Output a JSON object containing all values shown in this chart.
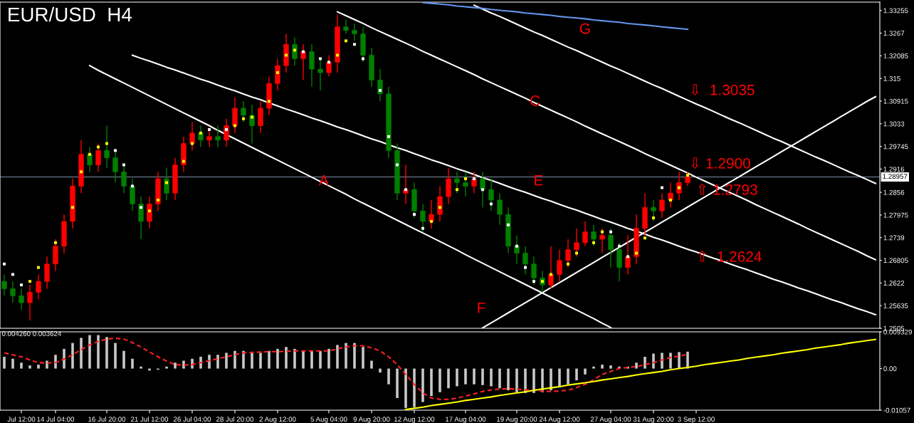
{
  "chart_data": [
    {
      "type": "candlestick",
      "title": "EUR/USD  H4",
      "tick_labels": "y",
      "grid": false,
      "legend": false,
      "categories": [
        null,
        null,
        null,
        null,
        null,
        null,
        null,
        null,
        null,
        null,
        null,
        null,
        null,
        null,
        null,
        null,
        null,
        null,
        null,
        null,
        null,
        null,
        null,
        null,
        null,
        null,
        null,
        null,
        null,
        null,
        null,
        null,
        null,
        null,
        null,
        null,
        null,
        null,
        null,
        null,
        null,
        null,
        null,
        null,
        null,
        null,
        null,
        null,
        null,
        null,
        null,
        null,
        null,
        null,
        null,
        null,
        null,
        null,
        null,
        null,
        null,
        null,
        null,
        null,
        null,
        null,
        null,
        null,
        null,
        null,
        null,
        null,
        null,
        null,
        null,
        null,
        null,
        null,
        null,
        null,
        null,
        null,
        null,
        null,
        null,
        null,
        null,
        null,
        null,
        null,
        null,
        null,
        null,
        null,
        null,
        null,
        null,
        null,
        null,
        null,
        null,
        null,
        null
      ],
      "ylim": [
        1.2505,
        1.3347
      ],
      "yticks": [
        1.33255,
        1.3267,
        1.32085,
        1.315,
        1.30915,
        1.3033,
        1.29745,
        1.2916,
        1.2856,
        1.27975,
        1.2739,
        1.26805,
        1.2622,
        1.25635,
        1.2505
      ],
      "ohlc": [
        [
          1.2626,
          1.2644,
          1.2589,
          1.2607
        ],
        [
          1.2607,
          1.2626,
          1.2571,
          1.2589
        ],
        [
          1.2589,
          1.2607,
          1.2553,
          1.2571
        ],
        [
          1.2571,
          1.2617,
          1.2525,
          1.2598
        ],
        [
          1.2598,
          1.2644,
          1.258,
          1.2626
        ],
        [
          1.2626,
          1.269,
          1.2607,
          1.2671
        ],
        [
          1.2671,
          1.2735,
          1.2653,
          1.2717
        ],
        [
          1.2717,
          1.2799,
          1.2699,
          1.2781
        ],
        [
          1.2781,
          1.2891,
          1.2763,
          1.2872
        ],
        [
          1.2872,
          1.2991,
          1.2854,
          1.2954
        ],
        [
          1.2954,
          1.2973,
          1.2909,
          1.2927
        ],
        [
          1.2927,
          1.2982,
          1.2909,
          1.2964
        ],
        [
          1.2964,
          1.3028,
          1.2918,
          1.2945
        ],
        [
          1.2945,
          1.2964,
          1.2881,
          1.2909
        ],
        [
          1.2909,
          1.2927,
          1.2854,
          1.2872
        ],
        [
          1.2872,
          1.2891,
          1.2808,
          1.2826
        ],
        [
          1.2826,
          1.2845,
          1.2735,
          1.2781
        ],
        [
          1.2781,
          1.2845,
          1.2763,
          1.2826
        ],
        [
          1.2826,
          1.2909,
          1.2808,
          1.2891
        ],
        [
          1.2891,
          1.2918,
          1.2836,
          1.2854
        ],
        [
          1.2854,
          1.2945,
          1.2836,
          1.2927
        ],
        [
          1.2927,
          1.3,
          1.2909,
          1.2982
        ],
        [
          1.2982,
          1.3037,
          1.2964,
          1.3009
        ],
        [
          1.3009,
          1.3028,
          1.2973,
          1.2991
        ],
        [
          1.2991,
          1.3018,
          1.2973,
          1.3
        ],
        [
          1.3,
          1.3028,
          1.2973,
          1.2991
        ],
        [
          1.2991,
          1.3046,
          1.2973,
          1.3028
        ],
        [
          1.3028,
          1.3101,
          1.3009,
          1.3073
        ],
        [
          1.3073,
          1.3091,
          1.3037,
          1.3055
        ],
        [
          1.3055,
          1.3082,
          1.2982,
          1.3028
        ],
        [
          1.3028,
          1.3091,
          1.3009,
          1.3073
        ],
        [
          1.3073,
          1.3155,
          1.3055,
          1.3137
        ],
        [
          1.3137,
          1.3201,
          1.3119,
          1.3183
        ],
        [
          1.3183,
          1.3265,
          1.3165,
          1.3238
        ],
        [
          1.3238,
          1.3256,
          1.3183,
          1.3201
        ],
        [
          1.3201,
          1.3238,
          1.3146,
          1.3219
        ],
        [
          1.3219,
          1.3238,
          1.3128,
          1.3174
        ],
        [
          1.3174,
          1.3201,
          1.3119,
          1.3165
        ],
        [
          1.3165,
          1.321,
          1.3155,
          1.3192
        ],
        [
          1.3192,
          1.3315,
          1.3165,
          1.3283
        ],
        [
          1.3283,
          1.3302,
          1.3265,
          1.3274
        ],
        [
          1.3274,
          1.3292,
          1.3247,
          1.3265
        ],
        [
          1.3265,
          1.3283,
          1.3192,
          1.321
        ],
        [
          1.321,
          1.3229,
          1.3128,
          1.3146
        ],
        [
          1.3146,
          1.3174,
          1.3091,
          1.311
        ],
        [
          1.311,
          1.3128,
          1.2945,
          1.2964
        ],
        [
          1.2964,
          1.2982,
          1.2836,
          1.2854
        ],
        [
          1.2854,
          1.2927,
          1.2826,
          1.2863
        ],
        [
          1.2863,
          1.2881,
          1.279,
          1.2808
        ],
        [
          1.2808,
          1.2826,
          1.2754,
          1.2781
        ],
        [
          1.2781,
          1.2836,
          1.2763,
          1.2799
        ],
        [
          1.2799,
          1.2872,
          1.2781,
          1.2845
        ],
        [
          1.2845,
          1.2918,
          1.2826,
          1.2891
        ],
        [
          1.2891,
          1.2909,
          1.2854,
          1.2881
        ],
        [
          1.2881,
          1.2909,
          1.2845,
          1.2872
        ],
        [
          1.2872,
          1.2909,
          1.2854,
          1.2891
        ],
        [
          1.2891,
          1.2909,
          1.2817,
          1.2863
        ],
        [
          1.2863,
          1.2891,
          1.2808,
          1.2836
        ],
        [
          1.2836,
          1.2854,
          1.2772,
          1.2799
        ],
        [
          1.2799,
          1.2817,
          1.2699,
          1.2717
        ],
        [
          1.2717,
          1.2745,
          1.2671,
          1.2699
        ],
        [
          1.2699,
          1.2717,
          1.2644,
          1.2671
        ],
        [
          1.2671,
          1.269,
          1.2617,
          1.2635
        ],
        [
          1.2635,
          1.2653,
          1.2598,
          1.2617
        ],
        [
          1.2617,
          1.2717,
          1.2607,
          1.2644
        ],
        [
          1.2644,
          1.2708,
          1.2626,
          1.268
        ],
        [
          1.268,
          1.2735,
          1.2662,
          1.2708
        ],
        [
          1.2708,
          1.2763,
          1.269,
          1.2726
        ],
        [
          1.2726,
          1.2781,
          1.2717,
          1.2754
        ],
        [
          1.2754,
          1.2772,
          1.2717,
          1.2735
        ],
        [
          1.2735,
          1.2763,
          1.2699,
          1.2745
        ],
        [
          1.2745,
          1.2763,
          1.2662,
          1.2708
        ],
        [
          1.2708,
          1.2726,
          1.2626,
          1.2662
        ],
        [
          1.2662,
          1.2745,
          1.2644,
          1.269
        ],
        [
          1.269,
          1.2799,
          1.2671,
          1.2763
        ],
        [
          1.2763,
          1.2854,
          1.2745,
          1.2817
        ],
        [
          1.2817,
          1.2836,
          1.2781,
          1.2808
        ],
        [
          1.2808,
          1.2854,
          1.279,
          1.2836
        ],
        [
          1.2836,
          1.2881,
          1.2817,
          1.2854
        ],
        [
          1.2854,
          1.2909,
          1.2836,
          1.2881
        ],
        [
          1.2881,
          1.2909,
          1.2872,
          1.2896
        ],
        null,
        null,
        null,
        null,
        null,
        null,
        null,
        null,
        null,
        null,
        null,
        null,
        null,
        null,
        null,
        null,
        null,
        null,
        null,
        null,
        null,
        null
      ],
      "colors": [
        "#008000",
        "#008000",
        "#008000",
        "#ff0000",
        "#ff0000",
        "#ff0000",
        "#ff0000",
        "#ff0000",
        "#ff0000",
        "#ff0000",
        "#008000",
        "#ff0000",
        "#008000",
        "#008000",
        "#008000",
        "#008000",
        "#008000",
        "#ff0000",
        "#ff0000",
        "#008000",
        "#ff0000",
        "#ff0000",
        "#ff0000",
        "#008000",
        "#ff0000",
        "#008000",
        "#ff0000",
        "#ff0000",
        "#008000",
        "#008000",
        "#ff0000",
        "#ff0000",
        "#ff0000",
        "#ff0000",
        "#008000",
        "#ff0000",
        "#008000",
        "#008000",
        "#ff0000",
        "#ff0000",
        "#008000",
        "#008000",
        "#008000",
        "#008000",
        "#008000",
        "#008000",
        "#008000",
        "#ff0000",
        "#008000",
        "#008000",
        "#ff0000",
        "#ff0000",
        "#ff0000",
        "#008000",
        "#008000",
        "#ff0000",
        "#008000",
        "#008000",
        "#008000",
        "#008000",
        "#008000",
        "#008000",
        "#008000",
        "#008000",
        "#ff0000",
        "#ff0000",
        "#ff0000",
        "#ff0000",
        "#ff0000",
        "#008000",
        "#ff0000",
        "#008000",
        "#008000",
        "#ff0000",
        "#ff0000",
        "#ff0000",
        "#008000",
        "#ff0000",
        "#ff0000",
        "#ff0000",
        "#ff0000",
        null,
        null,
        null,
        null,
        null,
        null,
        null,
        null,
        null,
        null,
        null,
        null,
        null,
        null,
        null,
        null,
        null,
        null,
        null,
        null,
        null,
        null
      ],
      "series": [
        {
          "type": "line",
          "color": "#ffffff",
          "values": [
            null,
            null,
            null,
            null,
            null,
            null,
            null,
            null,
            null,
            null,
            null,
            null,
            null,
            null,
            null,
            null,
            null,
            null,
            null,
            null,
            null,
            null,
            null,
            null,
            null,
            null,
            null,
            null,
            null,
            null,
            null,
            null,
            null,
            null,
            null,
            null,
            null,
            null,
            null,
            null,
            null,
            null,
            null,
            null,
            null,
            null,
            null,
            null,
            null,
            null,
            null,
            null,
            null,
            null,
            null,
            1.3339,
            1.3329,
            1.3319,
            1.331,
            1.33,
            1.329,
            1.328,
            1.327,
            1.3261,
            1.3251,
            1.3241,
            1.3231,
            1.3222,
            1.3212,
            1.3202,
            1.3192,
            1.3182,
            1.3173,
            1.3163,
            1.3153,
            1.3143,
            1.3133,
            1.3124,
            1.3114,
            1.3104,
            1.3094,
            1.3084,
            1.3075,
            1.3065,
            1.3055,
            1.3045,
            1.3036,
            1.3026,
            1.3016,
            1.3006,
            1.2996,
            1.2987,
            1.2977,
            1.2967,
            1.2957,
            1.2947,
            1.2938,
            1.2928,
            1.2918,
            1.2908,
            1.2899,
            1.2889,
            1.2879
          ]
        },
        {
          "type": "line",
          "color": "#ffffff",
          "values": [
            null,
            null,
            null,
            null,
            null,
            null,
            null,
            null,
            null,
            null,
            null,
            null,
            null,
            null,
            null,
            null,
            null,
            null,
            null,
            null,
            null,
            null,
            null,
            null,
            null,
            null,
            null,
            null,
            null,
            null,
            null,
            null,
            null,
            null,
            null,
            null,
            null,
            null,
            null,
            1.3322,
            1.3312,
            1.3302,
            1.3292,
            1.3281,
            1.3271,
            1.3261,
            1.3251,
            1.3241,
            1.3231,
            1.322,
            1.321,
            1.32,
            1.319,
            1.318,
            1.317,
            1.316,
            1.3149,
            1.3139,
            1.3129,
            1.3119,
            1.3109,
            1.3099,
            1.3088,
            1.3078,
            1.3068,
            1.3058,
            1.3048,
            1.3038,
            1.3027,
            1.3017,
            1.3007,
            1.2997,
            1.2987,
            1.2977,
            1.2967,
            1.2956,
            1.2946,
            1.2936,
            1.2926,
            1.2916,
            1.2906,
            1.2895,
            1.2885,
            1.2875,
            1.2865,
            1.2855,
            1.2845,
            1.2835,
            1.2824,
            1.2814,
            1.2804,
            1.2794,
            1.2784,
            1.2774,
            1.2763,
            1.2753,
            1.2743,
            1.2733,
            1.2723,
            1.2713,
            1.2703,
            1.2692,
            1.2682
          ]
        },
        {
          "type": "line",
          "color": "#ffffff",
          "values": [
            null,
            null,
            null,
            null,
            null,
            null,
            null,
            null,
            null,
            null,
            null,
            null,
            null,
            null,
            null,
            1.321,
            1.3202,
            1.3195,
            1.3187,
            1.3179,
            1.3172,
            1.3164,
            1.3156,
            1.3148,
            1.3141,
            1.3133,
            1.3125,
            1.3118,
            1.311,
            1.3102,
            1.3095,
            1.3087,
            1.3079,
            1.3071,
            1.3064,
            1.3056,
            1.3048,
            1.3041,
            1.3033,
            1.3025,
            1.3018,
            1.301,
            1.3002,
            1.2994,
            1.2987,
            1.2979,
            1.2971,
            1.2964,
            1.2956,
            1.2948,
            1.294,
            1.2933,
            1.2925,
            1.2917,
            1.291,
            1.2902,
            1.2894,
            1.2887,
            1.2879,
            1.2871,
            1.2863,
            1.2856,
            1.2848,
            1.284,
            1.2833,
            1.2825,
            1.2817,
            1.281,
            1.2802,
            1.2794,
            1.2786,
            1.2779,
            1.2771,
            1.2763,
            1.2756,
            1.2748,
            1.274,
            1.2733,
            1.2725,
            1.2717,
            1.2709,
            1.2702,
            1.2694,
            1.2686,
            1.2679,
            1.2671,
            1.2663,
            1.2656,
            1.2648,
            1.264,
            1.2632,
            1.2625,
            1.2617,
            1.2609,
            1.2602,
            1.2594,
            1.2586,
            1.2578,
            1.2571,
            1.2563,
            1.2555,
            1.2548,
            1.254
          ]
        },
        {
          "type": "line",
          "color": "#ffffff",
          "values": [
            null,
            null,
            null,
            null,
            null,
            null,
            null,
            null,
            null,
            null,
            1.3183,
            1.3171,
            1.316,
            1.3149,
            1.3138,
            1.3127,
            1.3116,
            1.3105,
            1.3094,
            1.3083,
            1.3072,
            1.3061,
            1.305,
            1.3039,
            1.3028,
            1.3016,
            1.3005,
            1.2994,
            1.2983,
            1.2972,
            1.2961,
            1.295,
            1.2939,
            1.2928,
            1.2917,
            1.2906,
            1.2895,
            1.2884,
            1.2873,
            1.2862,
            1.2851,
            1.2839,
            1.2828,
            1.2817,
            1.2806,
            1.2795,
            1.2784,
            1.2773,
            1.2762,
            1.2751,
            1.274,
            1.2729,
            1.2718,
            1.2707,
            1.2695,
            1.2684,
            1.2673,
            1.2662,
            1.2651,
            1.264,
            1.2629,
            1.2618,
            1.2607,
            1.2596,
            1.2585,
            1.2574,
            1.2563,
            1.2552,
            1.2541,
            1.253,
            1.2518,
            1.2507,
            null,
            null,
            null,
            null,
            null,
            null,
            null,
            null,
            null,
            null,
            null,
            null,
            null,
            null,
            null,
            null,
            null,
            null,
            null,
            null,
            null,
            null,
            null,
            null,
            null,
            null,
            null,
            null,
            null,
            null,
            null
          ]
        },
        {
          "type": "line",
          "color": "#ffffff",
          "values": [
            null,
            null,
            null,
            null,
            null,
            null,
            null,
            null,
            null,
            null,
            null,
            null,
            null,
            null,
            null,
            null,
            null,
            null,
            null,
            null,
            null,
            null,
            null,
            null,
            null,
            null,
            null,
            null,
            null,
            null,
            null,
            null,
            null,
            null,
            null,
            null,
            null,
            null,
            null,
            null,
            null,
            null,
            null,
            null,
            null,
            null,
            null,
            null,
            null,
            null,
            null,
            null,
            null,
            null,
            null,
            null,
            1.2506,
            1.2519,
            1.2532,
            1.2545,
            1.2558,
            1.2571,
            1.2584,
            1.2597,
            1.261,
            1.2623,
            1.2636,
            1.2649,
            1.2662,
            1.2675,
            1.2688,
            1.2701,
            1.2714,
            1.2727,
            1.274,
            1.2753,
            1.2766,
            1.2779,
            1.2792,
            1.2805,
            1.2818,
            1.2831,
            1.2844,
            1.2857,
            1.287,
            1.2883,
            1.2896,
            1.2909,
            1.2922,
            1.2935,
            1.2948,
            1.2961,
            1.2974,
            1.2987,
            1.3,
            1.3013,
            1.3026,
            1.3039,
            1.3052,
            1.3065,
            1.3078,
            1.3091,
            1.3103
          ]
        },
        {
          "type": "line",
          "color": "#6495ed",
          "values": [
            null,
            null,
            null,
            null,
            null,
            null,
            null,
            null,
            null,
            null,
            null,
            null,
            null,
            null,
            null,
            null,
            null,
            null,
            null,
            null,
            null,
            null,
            null,
            null,
            null,
            null,
            null,
            null,
            null,
            null,
            null,
            null,
            null,
            null,
            null,
            null,
            null,
            null,
            null,
            null,
            null,
            null,
            null,
            null,
            null,
            null,
            null,
            null,
            null,
            1.3346,
            1.3344,
            1.3342,
            1.334,
            1.3337,
            1.3335,
            1.3333,
            1.3331,
            1.3328,
            1.3326,
            1.3324,
            1.3322,
            1.3319,
            1.3317,
            1.3315,
            1.3313,
            1.331,
            1.3308,
            1.3306,
            1.3304,
            1.3301,
            1.3299,
            1.3297,
            1.3295,
            1.3292,
            1.329,
            1.3288,
            1.3286,
            1.3283,
            1.3281,
            1.3279,
            1.3277,
            null,
            null,
            null,
            null,
            null,
            null,
            null,
            null,
            null,
            null,
            null,
            null,
            null,
            null,
            null,
            null,
            null,
            null,
            null,
            null,
            null,
            null
          ]
        },
        {
          "type": "scatter",
          "color": "#ffffff",
          "marker": "square",
          "values": [
            1.2671,
            1.2644,
            1.2617,
            null,
            null,
            null,
            null,
            null,
            null,
            null,
            null,
            null,
            null,
            1.2964,
            1.2927,
            1.2872,
            1.2817,
            null,
            null,
            null,
            null,
            null,
            null,
            null,
            1.3018,
            null,
            1.3018,
            null,
            null,
            null,
            null,
            null,
            null,
            null,
            null,
            1.3219,
            null,
            1.3201,
            1.3192,
            null,
            null,
            1.3238,
            1.3201,
            null,
            1.3119,
            1.3,
            1.2927,
            1.2863,
            1.2799,
            1.2763,
            null,
            null,
            null,
            null,
            null,
            1.2891,
            1.2863,
            1.2826,
            null,
            1.2772,
            1.2717,
            1.2662,
            1.2626,
            null,
            null,
            null,
            null,
            null,
            null,
            null,
            null,
            1.2754,
            1.2717,
            1.269,
            null,
            null,
            null,
            1.2868,
            null,
            null,
            null,
            null,
            null,
            null,
            null,
            null,
            null,
            null,
            null,
            null,
            null,
            null,
            null,
            null,
            null,
            null,
            null,
            null,
            null,
            null,
            null,
            null,
            null
          ]
        },
        {
          "type": "scatter",
          "color": "#ffff00",
          "marker": "square",
          "values": [
            null,
            null,
            null,
            1.2626,
            1.2662,
            null,
            1.2726,
            null,
            1.2817,
            1.2909,
            1.2954,
            1.2973,
            1.2982,
            null,
            null,
            null,
            null,
            1.2808,
            1.2836,
            1.2881,
            null,
            1.2936,
            1.2982,
            1.3009,
            null,
            null,
            null,
            1.3028,
            1.3046,
            1.305,
            null,
            1.3091,
            1.3165,
            1.321,
            1.3223,
            null,
            null,
            null,
            null,
            1.321,
            1.3247,
            null,
            null,
            null,
            null,
            null,
            null,
            null,
            null,
            null,
            1.2781,
            1.2817,
            null,
            1.2863,
            1.2891,
            null,
            null,
            null,
            null,
            null,
            null,
            null,
            null,
            1.2626,
            1.2644,
            null,
            1.2671,
            1.2699,
            null,
            1.2726,
            1.2754,
            null,
            null,
            null,
            1.2699,
            1.2738,
            1.279,
            null,
            1.2836,
            1.2868,
            1.29,
            null,
            null,
            null,
            null,
            null,
            null,
            null,
            null,
            null,
            null,
            null,
            null,
            null,
            null,
            null,
            null,
            null,
            null,
            null,
            null,
            null,
            null
          ]
        }
      ],
      "ref_lines": [
        {
          "axis": "y",
          "value": 1.28957,
          "label": "1.28957",
          "color": "#8090a8"
        }
      ],
      "annotations": [
        "A",
        "C",
        "E",
        "F",
        "G",
        "⇩  1.3035",
        "⇩ 1.2900",
        "⇧ 1.2793",
        "⇧  1.2624"
      ]
    },
    {
      "type": "bar",
      "grid": false,
      "legend": false,
      "color": "#c8c8c8",
      "categories": [
        null,
        null,
        "Jul 12:00",
        null,
        null,
        null,
        "14 Jul 04:00",
        null,
        null,
        null,
        null,
        null,
        "16 Jul 20:00",
        null,
        null,
        null,
        null,
        "21 Jul 12:00",
        null,
        null,
        null,
        null,
        "26 Jul 04:00",
        null,
        null,
        null,
        null,
        "28 Jul 20:00",
        null,
        null,
        null,
        null,
        "2 Aug 12:00",
        null,
        null,
        null,
        null,
        null,
        "5 Aug 04:00",
        null,
        null,
        null,
        null,
        "9 Aug 20:00",
        null,
        null,
        null,
        null,
        "12 Aug 12:00",
        null,
        null,
        null,
        null,
        null,
        "17 Aug 04:00",
        null,
        null,
        null,
        null,
        null,
        "19 Aug 20:00",
        null,
        null,
        null,
        null,
        "24 Aug 12:00",
        null,
        null,
        null,
        null,
        null,
        "27 Aug 04:00",
        null,
        null,
        null,
        null,
        "31 Aug 20:00",
        null,
        null,
        null,
        null,
        "3 Sep 12:00",
        null,
        null,
        null,
        null,
        null,
        null,
        null,
        null,
        null,
        null,
        null,
        null,
        null,
        null,
        null,
        null,
        null,
        null,
        null,
        null,
        null
      ],
      "ylim": [
        -0.01057,
        0.009329
      ],
      "yticks": [
        {
          "value": 0.009329,
          "label": "0.009329"
        },
        {
          "value": 0,
          "label": "0.00"
        },
        {
          "value": -0.01057,
          "label": "-0.01057"
        }
      ],
      "values": [
        0.003,
        0.0025,
        0.0015,
        0.0008,
        0.001,
        0.002,
        0.0035,
        0.005,
        0.0065,
        0.0078,
        0.0085,
        0.0085,
        0.008,
        0.0065,
        0.0045,
        0.0025,
        0.0005,
        -0.0005,
        -0.0003,
        0.0005,
        0.0015,
        0.002,
        0.0025,
        0.003,
        0.0035,
        0.0035,
        0.004,
        0.0045,
        0.0045,
        0.004,
        0.004,
        0.0045,
        0.005,
        0.0055,
        0.005,
        0.0045,
        0.0045,
        0.0045,
        0.005,
        0.006,
        0.0065,
        0.0065,
        0.0055,
        0.002,
        -0.001,
        -0.004,
        -0.0075,
        -0.01,
        -0.0098,
        -0.0085,
        -0.007,
        -0.006,
        -0.005,
        -0.0045,
        -0.004,
        -0.004,
        -0.0042,
        -0.0045,
        -0.005,
        -0.0055,
        -0.006,
        -0.0062,
        -0.0062,
        -0.006,
        -0.0055,
        -0.0048,
        -0.004,
        -0.003,
        -0.0015,
        0.0005,
        0.001,
        0.0008,
        0.0005,
        0.0005,
        0.0015,
        0.003,
        0.0038,
        0.004,
        0.004,
        0.0042,
        0.0043,
        null,
        null,
        null,
        null,
        null,
        null,
        null,
        null,
        null,
        null,
        null,
        null,
        null,
        null,
        null,
        null,
        null,
        null,
        null,
        null,
        null,
        null
      ],
      "series": [
        {
          "type": "line",
          "color": "#ff2020",
          "line_style": "dashed",
          "values": [
            0.004,
            0.0035,
            0.003,
            0.0022,
            0.0015,
            0.0014,
            0.0015,
            0.0024,
            0.0035,
            0.0048,
            0.006,
            0.0069,
            0.0075,
            0.0077,
            0.0075,
            0.0066,
            0.0055,
            0.0042,
            0.003,
            0.0019,
            0.001,
            0.0009,
            0.001,
            0.0015,
            0.002,
            0.0025,
            0.003,
            0.0035,
            0.004,
            0.0041,
            0.0042,
            0.0043,
            0.0043,
            0.0044,
            0.0045,
            0.0045,
            0.0045,
            0.0045,
            0.0045,
            0.005,
            0.0055,
            0.0058,
            0.0058,
            0.0053,
            0.0045,
            0.003,
            0.001,
            -0.0015,
            -0.004,
            -0.0062,
            -0.0075,
            -0.0078,
            -0.0078,
            -0.0075,
            -0.007,
            -0.0064,
            -0.0058,
            -0.0054,
            -0.0052,
            -0.0051,
            -0.0052,
            -0.0054,
            -0.0055,
            -0.0057,
            -0.0058,
            -0.0057,
            -0.0055,
            -0.0048,
            -0.004,
            -0.0028,
            -0.0015,
            -0.0007,
            0.0,
            0.0003,
            0.0005,
            0.001,
            0.0015,
            0.0022,
            0.0028,
            0.0032,
            0.0036,
            null,
            null,
            null,
            null,
            null,
            null,
            null,
            null,
            null,
            null,
            null,
            null,
            null,
            null,
            null,
            null,
            null,
            null,
            null,
            null,
            null,
            null
          ]
        },
        {
          "type": "line",
          "color": "#ffff00",
          "values": [
            null,
            null,
            null,
            null,
            null,
            null,
            null,
            null,
            null,
            null,
            null,
            null,
            null,
            null,
            null,
            null,
            null,
            null,
            null,
            null,
            null,
            null,
            null,
            null,
            null,
            null,
            null,
            null,
            null,
            null,
            null,
            null,
            null,
            null,
            null,
            null,
            null,
            null,
            null,
            null,
            null,
            null,
            null,
            null,
            null,
            null,
            null,
            -0.0104,
            -0.0101,
            -0.0098,
            -0.0094,
            -0.0091,
            -0.0088,
            -0.0085,
            -0.0081,
            -0.0078,
            -0.0075,
            -0.0072,
            -0.0068,
            -0.0065,
            -0.0062,
            -0.0059,
            -0.0055,
            -0.0052,
            -0.0049,
            -0.0046,
            -0.0042,
            -0.0039,
            -0.0036,
            -0.0033,
            -0.0029,
            -0.0026,
            -0.0023,
            -0.002,
            -0.0016,
            -0.0013,
            -0.001,
            -0.0007,
            -0.0003,
            0.0,
            0.0003,
            0.0006,
            0.001,
            0.0013,
            0.0016,
            0.0019,
            0.0022,
            0.0026,
            0.0029,
            0.0032,
            0.0035,
            0.0039,
            0.0042,
            0.0045,
            0.0048,
            0.0052,
            0.0055,
            0.0058,
            0.0061,
            0.0065,
            0.0068,
            0.0071,
            0.0074
          ]
        }
      ],
      "annotations": [
        "0.004260 0.003624"
      ]
    }
  ]
}
